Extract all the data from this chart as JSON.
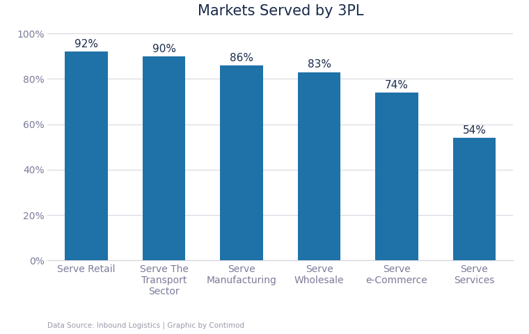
{
  "title": "Markets Served by 3PL",
  "categories": [
    "Serve Retail",
    "Serve The\nTransport\nSector",
    "Serve\nManufacturing",
    "Serve\nWholesale",
    "Serve\ne-Commerce",
    "Serve\nServices"
  ],
  "values": [
    92,
    90,
    86,
    83,
    74,
    54
  ],
  "labels": [
    "92%",
    "90%",
    "86%",
    "83%",
    "74%",
    "54%"
  ],
  "bar_color": "#1f72a8",
  "ylim": [
    0,
    100
  ],
  "yticks": [
    0,
    20,
    40,
    60,
    80,
    100
  ],
  "ytick_labels": [
    "0%",
    "20%",
    "40%",
    "60%",
    "80%",
    "100%"
  ],
  "title_fontsize": 15,
  "label_fontsize": 11,
  "tick_fontsize": 10,
  "footnote": "Data Source: Inbound Logistics | Graphic by Contimod",
  "footnote_fontsize": 7.5,
  "background_color": "#ffffff",
  "grid_color": "#d8d8e0",
  "tick_color": "#7b7b9a",
  "bar_width": 0.55
}
